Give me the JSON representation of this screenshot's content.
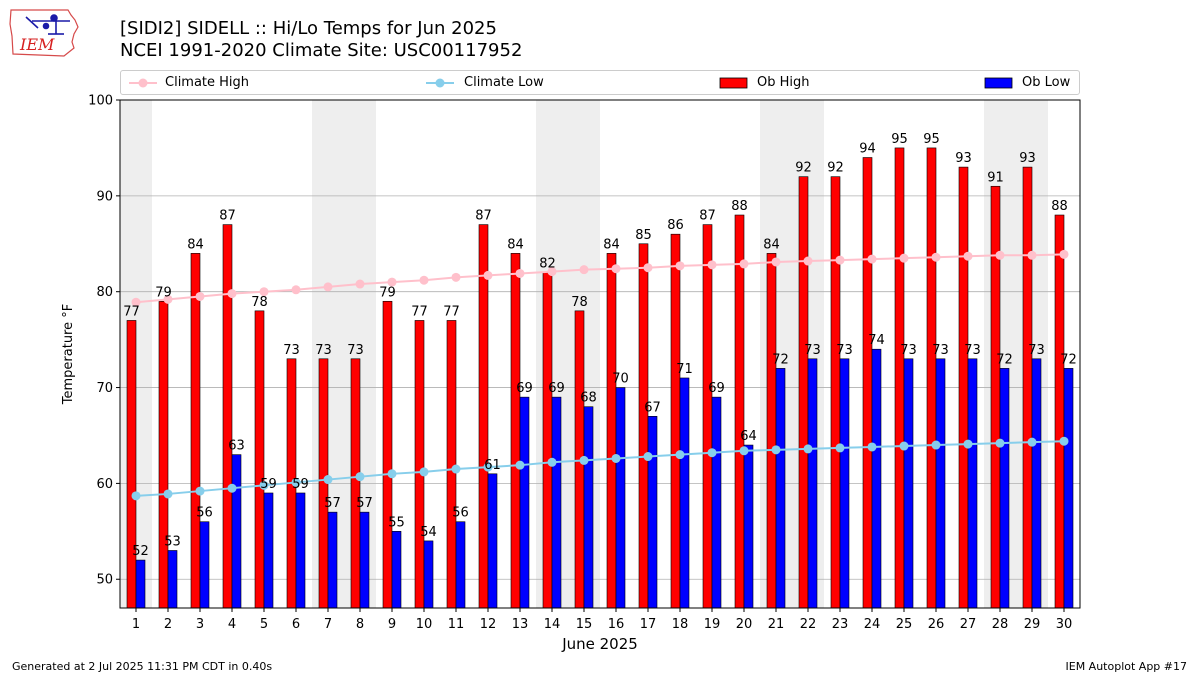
{
  "header": {
    "title_line1": "[SIDI2] SIDELL :: Hi/Lo Temps for Jun 2025",
    "title_line2": "NCEI 1991-2020 Climate Site: USC00117952",
    "logo_text": "IEM"
  },
  "footer": {
    "left": "Generated at 2 Jul 2025 11:31 PM CDT in 0.40s",
    "right": "IEM Autoplot App #17"
  },
  "colors": {
    "ob_high": "#ff0000",
    "ob_low": "#0000ff",
    "climate_high": "#ffc0cb",
    "climate_low": "#87ceeb",
    "weekend_shade": "#eeeeee"
  },
  "chart_data": {
    "type": "bar",
    "xlabel": "June 2025",
    "ylabel": "Temperature °F",
    "ylim": [
      47,
      100
    ],
    "yticks": [
      50,
      60,
      70,
      80,
      90,
      100
    ],
    "grid": "horizontal",
    "legend_position": "top",
    "categories": [
      "1",
      "2",
      "3",
      "4",
      "5",
      "6",
      "7",
      "8",
      "9",
      "10",
      "11",
      "12",
      "13",
      "14",
      "15",
      "16",
      "17",
      "18",
      "19",
      "20",
      "21",
      "22",
      "23",
      "24",
      "25",
      "26",
      "27",
      "28",
      "29",
      "30"
    ],
    "weekend_days": [
      1,
      7,
      8,
      14,
      15,
      21,
      22,
      28,
      29
    ],
    "series": [
      {
        "name": "Ob High",
        "kind": "bar",
        "values": [
          77,
          79,
          84,
          87,
          78,
          73,
          73,
          73,
          79,
          77,
          77,
          87,
          84,
          82,
          78,
          84,
          85,
          86,
          87,
          88,
          84,
          92,
          92,
          94,
          95,
          95,
          93,
          91,
          93,
          88
        ]
      },
      {
        "name": "Ob Low",
        "kind": "bar",
        "values": [
          52,
          53,
          56,
          63,
          59,
          59,
          57,
          57,
          55,
          54,
          56,
          61,
          69,
          69,
          68,
          70,
          67,
          71,
          69,
          64,
          72,
          73,
          73,
          74,
          73,
          73,
          73,
          72,
          73,
          72
        ]
      },
      {
        "name": "Climate High",
        "kind": "line",
        "values": [
          78.9,
          79.2,
          79.5,
          79.8,
          80.0,
          80.2,
          80.5,
          80.8,
          81.0,
          81.2,
          81.5,
          81.7,
          81.9,
          82.1,
          82.3,
          82.4,
          82.5,
          82.7,
          82.8,
          82.9,
          83.1,
          83.2,
          83.3,
          83.4,
          83.5,
          83.6,
          83.7,
          83.8,
          83.8,
          83.9
        ]
      },
      {
        "name": "Climate Low",
        "kind": "line",
        "values": [
          58.7,
          58.9,
          59.2,
          59.5,
          59.8,
          60.1,
          60.4,
          60.7,
          61.0,
          61.2,
          61.5,
          61.7,
          61.9,
          62.2,
          62.4,
          62.6,
          62.8,
          63.0,
          63.2,
          63.4,
          63.5,
          63.6,
          63.7,
          63.8,
          63.9,
          64.0,
          64.1,
          64.2,
          64.3,
          64.4
        ]
      }
    ]
  }
}
